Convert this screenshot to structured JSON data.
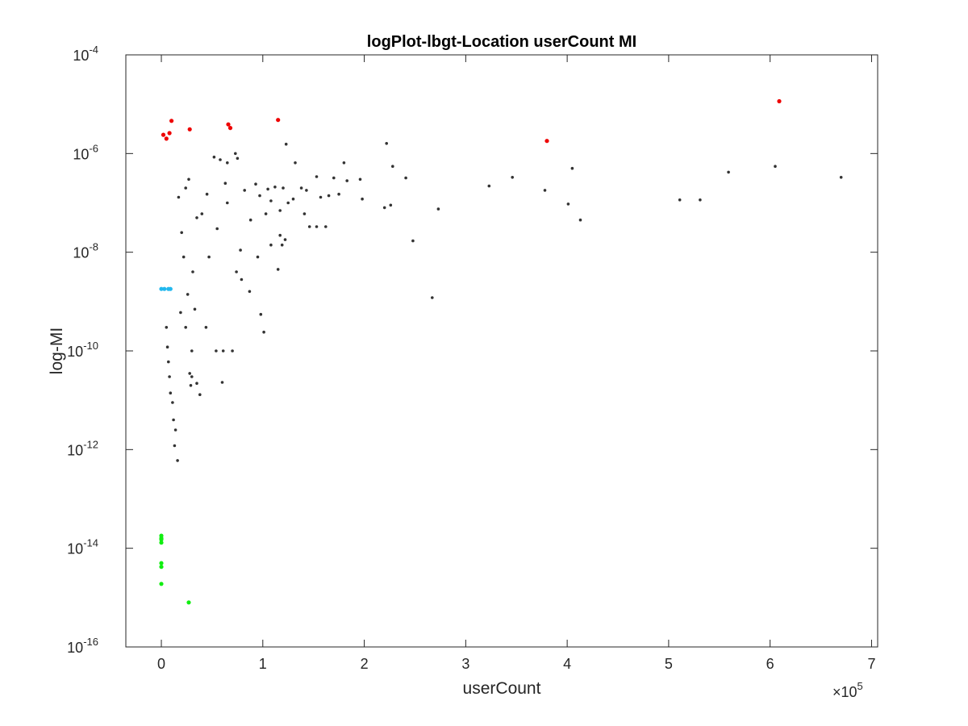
{
  "chart_data": {
    "type": "scatter",
    "title": "logPlot-lbgt-Location userCount MI",
    "xlabel": "userCount",
    "ylabel": "log-MI",
    "x_multiplier": {
      "base": "×10",
      "exponent": "5"
    },
    "xlim": [
      -35000,
      706000
    ],
    "ylim": [
      1e-16,
      0.0001
    ],
    "yscale": "log",
    "x_ticks": [
      {
        "value": 0,
        "label": "0"
      },
      {
        "value": 100000,
        "label": "1"
      },
      {
        "value": 200000,
        "label": "2"
      },
      {
        "value": 300000,
        "label": "3"
      },
      {
        "value": 400000,
        "label": "4"
      },
      {
        "value": 500000,
        "label": "5"
      },
      {
        "value": 600000,
        "label": "6"
      },
      {
        "value": 700000,
        "label": "7"
      }
    ],
    "y_ticks": [
      {
        "value": 1e-16,
        "base": "10",
        "exponent": "-16"
      },
      {
        "value": 1e-14,
        "base": "10",
        "exponent": "-14"
      },
      {
        "value": 1e-12,
        "base": "10",
        "exponent": "-12"
      },
      {
        "value": 1e-10,
        "base": "10",
        "exponent": "-10"
      },
      {
        "value": 1e-08,
        "base": "10",
        "exponent": "-8"
      },
      {
        "value": 1e-06,
        "base": "10",
        "exponent": "-6"
      },
      {
        "value": 0.0001,
        "base": "10",
        "exponent": "-4"
      }
    ],
    "grid": false,
    "series": [
      {
        "color": "#333333",
        "points": [
          [
            52000,
            8.5e-07
          ],
          [
            58000,
            7.5e-07
          ],
          [
            73000,
            1e-06
          ],
          [
            75000,
            8e-07
          ],
          [
            65000,
            6.5e-07
          ],
          [
            123000,
            1.55e-06
          ],
          [
            132000,
            6.5e-07
          ],
          [
            222000,
            1.6e-06
          ],
          [
            228000,
            5.5e-07
          ],
          [
            180000,
            6.5e-07
          ],
          [
            605000,
            5.5e-07
          ],
          [
            559000,
            4.2e-07
          ],
          [
            670000,
            3.3e-07
          ],
          [
            405000,
            5e-07
          ],
          [
            346000,
            3.3e-07
          ],
          [
            323000,
            2.2e-07
          ],
          [
            378000,
            1.8e-07
          ],
          [
            401000,
            9.5e-08
          ],
          [
            413000,
            4.5e-08
          ],
          [
            511000,
            1.15e-07
          ],
          [
            531000,
            1.15e-07
          ],
          [
            273000,
            7.5e-08
          ],
          [
            248000,
            1.7e-08
          ],
          [
            267000,
            1.2e-09
          ],
          [
            241000,
            3.2e-07
          ],
          [
            196000,
            3e-07
          ],
          [
            183000,
            2.8e-07
          ],
          [
            170000,
            3.2e-07
          ],
          [
            153000,
            3.4e-07
          ],
          [
            157000,
            1.3e-07
          ],
          [
            165000,
            1.4e-07
          ],
          [
            175000,
            1.5e-07
          ],
          [
            198000,
            1.2e-07
          ],
          [
            220000,
            8e-08
          ],
          [
            226000,
            9e-08
          ],
          [
            162000,
            3.3e-08
          ],
          [
            153000,
            3.3e-08
          ],
          [
            146000,
            3.3e-08
          ],
          [
            120000,
            2e-07
          ],
          [
            105000,
            1.9e-07
          ],
          [
            112000,
            2.1e-07
          ],
          [
            138000,
            2e-07
          ],
          [
            143000,
            1.8e-07
          ],
          [
            130000,
            1.2e-07
          ],
          [
            141000,
            6e-08
          ],
          [
            125000,
            1e-07
          ],
          [
            108000,
            1.1e-07
          ],
          [
            103000,
            6e-08
          ],
          [
            117000,
            7e-08
          ],
          [
            122000,
            1.8e-08
          ],
          [
            117000,
            2.2e-08
          ],
          [
            115000,
            4.5e-09
          ],
          [
            108000,
            1.4e-08
          ],
          [
            119000,
            1.4e-08
          ],
          [
            98000,
            5.5e-10
          ],
          [
            87000,
            1.6e-09
          ],
          [
            95000,
            8e-09
          ],
          [
            78000,
            1.1e-08
          ],
          [
            74000,
            4e-09
          ],
          [
            79000,
            2.8e-09
          ],
          [
            101000,
            2.4e-10
          ],
          [
            70000,
            1e-10
          ],
          [
            61000,
            1e-10
          ],
          [
            60000,
            2.3e-11
          ],
          [
            54000,
            1e-10
          ],
          [
            38000,
            1.3e-11
          ],
          [
            35000,
            2.2e-11
          ],
          [
            30000,
            3e-11
          ],
          [
            29000,
            2e-11
          ],
          [
            28000,
            3.5e-11
          ],
          [
            16000,
            6e-13
          ],
          [
            13000,
            1.2e-12
          ],
          [
            14000,
            2.5e-12
          ],
          [
            12000,
            4e-12
          ],
          [
            11000,
            9e-12
          ],
          [
            9000,
            1.4e-11
          ],
          [
            8000,
            3e-11
          ],
          [
            7000,
            6e-11
          ],
          [
            6000,
            1.2e-10
          ],
          [
            5000,
            3e-10
          ],
          [
            31000,
            4e-09
          ],
          [
            44000,
            3e-10
          ],
          [
            47000,
            8e-09
          ],
          [
            55000,
            3e-08
          ],
          [
            65000,
            1e-07
          ],
          [
            82000,
            1.8e-07
          ],
          [
            88000,
            4.5e-08
          ],
          [
            93000,
            2.4e-07
          ],
          [
            97000,
            1.4e-07
          ],
          [
            63000,
            2.5e-07
          ],
          [
            40000,
            6e-08
          ],
          [
            45000,
            1.5e-07
          ],
          [
            24000,
            2e-07
          ],
          [
            20000,
            2.5e-08
          ],
          [
            35000,
            5e-08
          ],
          [
            27000,
            3e-07
          ],
          [
            17000,
            1.3e-07
          ],
          [
            22000,
            8e-09
          ],
          [
            26000,
            1.4e-09
          ],
          [
            33000,
            7e-10
          ],
          [
            30000,
            1e-10
          ],
          [
            24000,
            3e-10
          ],
          [
            19000,
            6e-10
          ]
        ]
      },
      {
        "color": "#ee0000",
        "points": [
          [
            609000,
            1.15e-05
          ],
          [
            10000,
            4.6e-06
          ],
          [
            66000,
            3.9e-06
          ],
          [
            115000,
            4.8e-06
          ],
          [
            68000,
            3.3e-06
          ],
          [
            28000,
            3.1e-06
          ],
          [
            8000,
            2.6e-06
          ],
          [
            2000,
            2.4e-06
          ],
          [
            5000,
            2e-06
          ],
          [
            380000,
            1.8e-06
          ]
        ]
      },
      {
        "color": "#22b8ee",
        "points": [
          [
            0,
            1.8e-09
          ],
          [
            3000,
            1.8e-09
          ],
          [
            7000,
            1.8e-09
          ],
          [
            9000,
            1.8e-09
          ]
        ]
      },
      {
        "color": "#11ee11",
        "points": [
          [
            0,
            1.8e-14
          ],
          [
            0,
            1.5e-14
          ],
          [
            0,
            1.3e-14
          ],
          [
            0,
            1.6e-14
          ],
          [
            0,
            5e-15
          ],
          [
            0,
            4.2e-15
          ],
          [
            0,
            1.9e-15
          ],
          [
            27000,
            8e-16
          ]
        ]
      }
    ]
  }
}
